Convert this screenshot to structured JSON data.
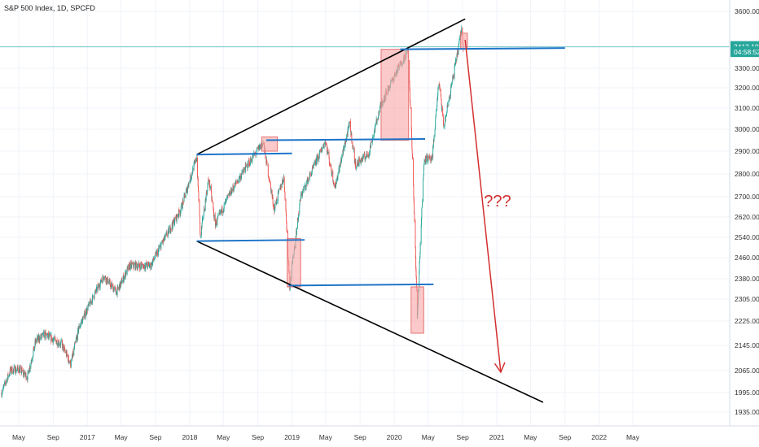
{
  "chart_data": {
    "type": "candlestick",
    "title": "S&P 500 Index, 1D, SPCFD",
    "ylim": [
      1900,
      3650
    ],
    "xlim": [
      "2016-03-01",
      "2022-07-01"
    ],
    "y_ticks": [
      1935,
      1995,
      2065,
      2145,
      2225,
      2305,
      2380,
      2460,
      2540,
      2620,
      2700,
      2800,
      2900,
      3000,
      3100,
      3200,
      3300,
      3600
    ],
    "y_tick_labels": [
      "1935.00",
      "1995.00",
      "2065.00",
      "2145.00",
      "2225.00",
      "2305.00",
      "2380.00",
      "2460.00",
      "2540.00",
      "2620.00",
      "2700.00",
      "2800.00",
      "2900.00",
      "3000.00",
      "3100.00",
      "3200.00",
      "3300.00",
      "3600.00"
    ],
    "x_ticks": [
      {
        "date": "2016-05-01",
        "label": "May"
      },
      {
        "date": "2016-09-01",
        "label": "Sep"
      },
      {
        "date": "2017-01-01",
        "label": "2017"
      },
      {
        "date": "2017-05-01",
        "label": "May"
      },
      {
        "date": "2017-09-01",
        "label": "Sep"
      },
      {
        "date": "2018-01-01",
        "label": "2018"
      },
      {
        "date": "2018-05-01",
        "label": "May"
      },
      {
        "date": "2018-09-01",
        "label": "Sep"
      },
      {
        "date": "2019-01-01",
        "label": "2019"
      },
      {
        "date": "2019-05-01",
        "label": "May"
      },
      {
        "date": "2019-09-01",
        "label": "Sep"
      },
      {
        "date": "2020-01-01",
        "label": "2020"
      },
      {
        "date": "2020-05-01",
        "label": "May"
      },
      {
        "date": "2020-09-01",
        "label": "Sep"
      },
      {
        "date": "2021-01-01",
        "label": "2021"
      },
      {
        "date": "2021-05-01",
        "label": "May"
      },
      {
        "date": "2021-09-01",
        "label": "Sep"
      },
      {
        "date": "2022-01-01",
        "label": "2022"
      },
      {
        "date": "2022-05-01",
        "label": "May"
      }
    ],
    "price_path": [
      [
        "2016-03-01",
        1995
      ],
      [
        "2016-04-01",
        2065
      ],
      [
        "2016-05-01",
        2070
      ],
      [
        "2016-06-01",
        2045
      ],
      [
        "2016-07-01",
        2160
      ],
      [
        "2016-08-01",
        2180
      ],
      [
        "2016-09-01",
        2165
      ],
      [
        "2016-10-01",
        2150
      ],
      [
        "2016-11-03",
        2085
      ],
      [
        "2016-12-01",
        2200
      ],
      [
        "2017-01-01",
        2270
      ],
      [
        "2017-03-01",
        2390
      ],
      [
        "2017-04-15",
        2330
      ],
      [
        "2017-06-01",
        2430
      ],
      [
        "2017-08-15",
        2430
      ],
      [
        "2017-10-01",
        2530
      ],
      [
        "2017-12-01",
        2650
      ],
      [
        "2018-01-26",
        2872
      ],
      [
        "2018-02-08",
        2540
      ],
      [
        "2018-03-10",
        2780
      ],
      [
        "2018-04-02",
        2590
      ],
      [
        "2018-06-01",
        2730
      ],
      [
        "2018-08-01",
        2850
      ],
      [
        "2018-09-20",
        2940
      ],
      [
        "2018-10-29",
        2650
      ],
      [
        "2018-12-03",
        2790
      ],
      [
        "2018-12-24",
        2350
      ],
      [
        "2019-02-01",
        2700
      ],
      [
        "2019-04-30",
        2945
      ],
      [
        "2019-06-03",
        2740
      ],
      [
        "2019-07-26",
        3025
      ],
      [
        "2019-08-15",
        2840
      ],
      [
        "2019-10-02",
        2890
      ],
      [
        "2019-11-15",
        3120
      ],
      [
        "2020-01-15",
        3300
      ],
      [
        "2020-02-19",
        3393
      ],
      [
        "2020-03-09",
        2750
      ],
      [
        "2020-03-23",
        2237
      ],
      [
        "2020-04-17",
        2870
      ],
      [
        "2020-05-15",
        2860
      ],
      [
        "2020-06-08",
        3230
      ],
      [
        "2020-06-26",
        3010
      ],
      [
        "2020-07-31",
        3270
      ],
      [
        "2020-08-28",
        3508
      ],
      [
        "2020-09-03",
        3415
      ]
    ],
    "current_price": {
      "value": 3413.19,
      "label": "3413.19"
    },
    "countdown": {
      "value": 3385,
      "label": "04:58:52"
    },
    "annotations": {
      "megaphone_upper": [
        [
          "2018-01-26",
          2885
        ],
        [
          "2020-09-10",
          3560
        ]
      ],
      "megaphone_lower": [
        [
          "2018-01-26",
          2525
        ],
        [
          "2021-06-15",
          1965
        ]
      ],
      "horizontal_levels": [
        {
          "from": "2018-01-26",
          "to": "2019-01-01",
          "y": 2885
        },
        {
          "from": "2018-01-26",
          "to": "2019-02-15",
          "y": 2525
        },
        {
          "from": "2018-10-01",
          "to": "2020-04-20",
          "y": 2950
        },
        {
          "from": "2018-12-20",
          "to": "2020-05-20",
          "y": 2355
        },
        {
          "from": "2020-01-22",
          "to": "2021-09-01",
          "y": 3400
        }
      ],
      "boxes": [
        {
          "from": "2018-09-15",
          "to": "2018-11-10",
          "ymin": 2900,
          "ymax": 2965
        },
        {
          "from": "2018-12-15",
          "to": "2019-02-01",
          "ymin": 2350,
          "ymax": 2535
        },
        {
          "from": "2019-11-15",
          "to": "2020-02-21",
          "ymin": 2950,
          "ymax": 3400
        },
        {
          "from": "2020-03-01",
          "to": "2020-04-15",
          "ymin": 2185,
          "ymax": 2350
        },
        {
          "from": "2020-08-25",
          "to": "2020-09-18",
          "ymin": 3400,
          "ymax": 3485
        }
      ],
      "arrow": {
        "from": [
          "2020-09-10",
          3450
        ],
        "to": [
          "2021-01-15",
          2060
        ]
      },
      "note": {
        "text": "???",
        "at": [
          "2020-12-15",
          2700
        ]
      }
    },
    "colors": {
      "up": "#26a69a",
      "down": "#ef5350",
      "trendline": "#000000",
      "level": "#1e74c8",
      "box_fill": "#f8a5a5",
      "box_stroke": "#e57373",
      "arrow": "#d32f2f",
      "price_tag": "#26a69a",
      "grid": "#f0f3fa"
    },
    "grid": true,
    "legend": "none"
  }
}
